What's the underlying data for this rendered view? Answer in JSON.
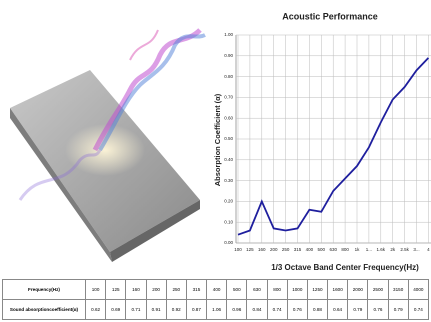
{
  "chart_data": {
    "type": "line",
    "title": "Acoustic Performance",
    "x_label": "1/3 Octave Band Center Frequency(Hz)",
    "y_label": "Absorption Coefficient (α)",
    "categories": [
      "100",
      "125",
      "160",
      "200",
      "250",
      "315",
      "400",
      "500",
      "630",
      "800",
      "1k",
      "1...",
      "1.6k",
      "2k",
      "2.5k",
      "3...",
      "4"
    ],
    "values": [
      0.04,
      0.06,
      0.2,
      0.07,
      0.06,
      0.07,
      0.16,
      0.15,
      0.25,
      0.31,
      0.37,
      0.46,
      0.58,
      0.69,
      0.75,
      0.83,
      0.89
    ],
    "color": "#1f1f9e",
    "ylim": [
      0,
      1
    ],
    "yticks": [
      {
        "value": 0,
        "label": "0.00"
      },
      {
        "value": 0.1,
        "label": "0.10"
      },
      {
        "value": 0.2,
        "label": "0.20"
      },
      {
        "value": 0.3,
        "label": "0.30"
      },
      {
        "value": 0.4,
        "label": "0.40"
      },
      {
        "value": 0.5,
        "label": "0.50"
      },
      {
        "value": 0.6,
        "label": "0.60"
      },
      {
        "value": 0.7,
        "label": "0.70"
      },
      {
        "value": 0.8,
        "label": "0.80"
      },
      {
        "value": 0.9,
        "label": "0.90"
      },
      {
        "value": 1,
        "label": "1.00"
      }
    ],
    "grid": true
  },
  "table": {
    "header": [
      "Frequency(Hz)",
      "100",
      "125",
      "160",
      "200",
      "250",
      "315",
      "400",
      "500",
      "630",
      "800",
      "1000",
      "1250",
      "1600",
      "2000",
      "2500",
      "3150",
      "4000"
    ],
    "rows": [
      [
        "Sound absorptioncoefficient(α)",
        "0.62",
        "0.69",
        "0.71",
        "0.91",
        "0.92",
        "0.87",
        "1.06",
        "0.96",
        "0.84",
        "0.74",
        "0.76",
        "0.88",
        "0.64",
        "0.79",
        "0.76",
        "0.79",
        "0.74"
      ]
    ]
  }
}
